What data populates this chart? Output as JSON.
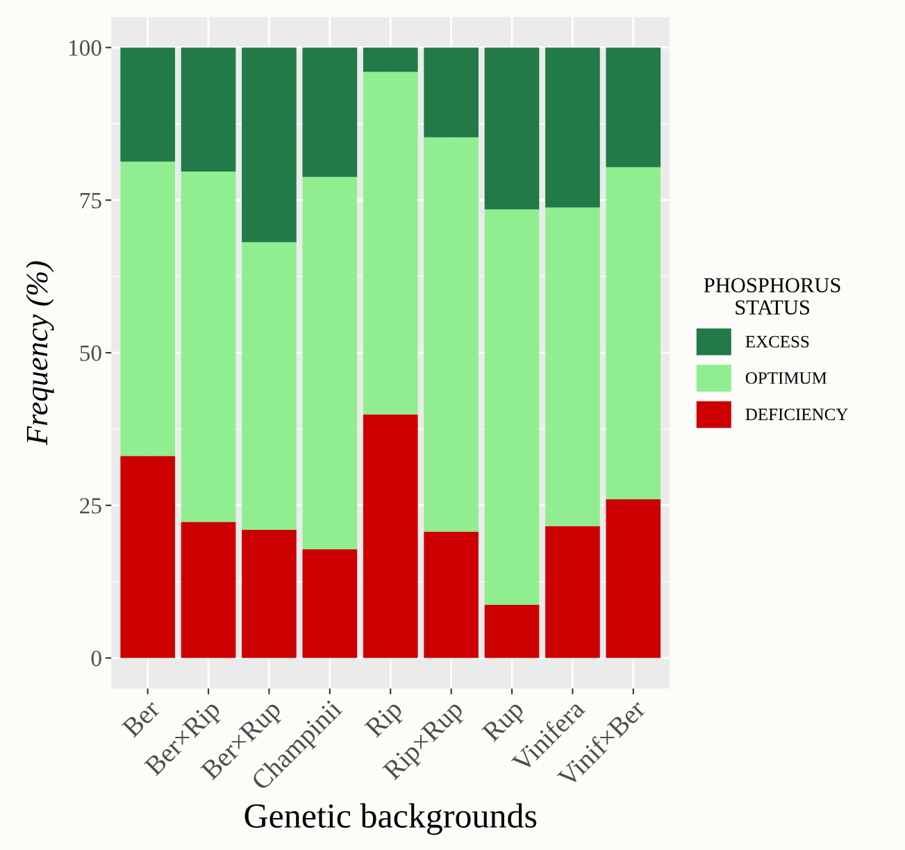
{
  "chart_data": {
    "type": "bar",
    "stacked": true,
    "xlabel": "Genetic backgrounds",
    "ylabel": "Frequency (%)",
    "legend_title": "PHOSPHORUS\nSTATUS",
    "legend": "right",
    "categories": [
      "Ber",
      "Ber×Rip",
      "Ber×Rup",
      "Champinii",
      "Rip",
      "Rip×Rup",
      "Rup",
      "Vinifera",
      "Vinif×Ber"
    ],
    "series": [
      {
        "name": "DEFICIENCY",
        "color": "#cc0000",
        "values": [
          33.1,
          22.3,
          21.0,
          17.8,
          39.9,
          20.7,
          8.7,
          21.6,
          26.0
        ]
      },
      {
        "name": "OPTIMUM",
        "color": "#90ee90",
        "values": [
          48.2,
          57.4,
          47.1,
          61.0,
          56.1,
          64.6,
          64.8,
          52.2,
          54.4
        ]
      },
      {
        "name": "EXCESS",
        "color": "#217a48",
        "values": [
          18.7,
          20.3,
          31.9,
          21.2,
          4.0,
          14.7,
          26.5,
          26.2,
          19.6
        ]
      }
    ],
    "ylim": [
      -5,
      105
    ],
    "yticks": [
      0,
      25,
      50,
      75,
      100
    ],
    "grid": true
  }
}
